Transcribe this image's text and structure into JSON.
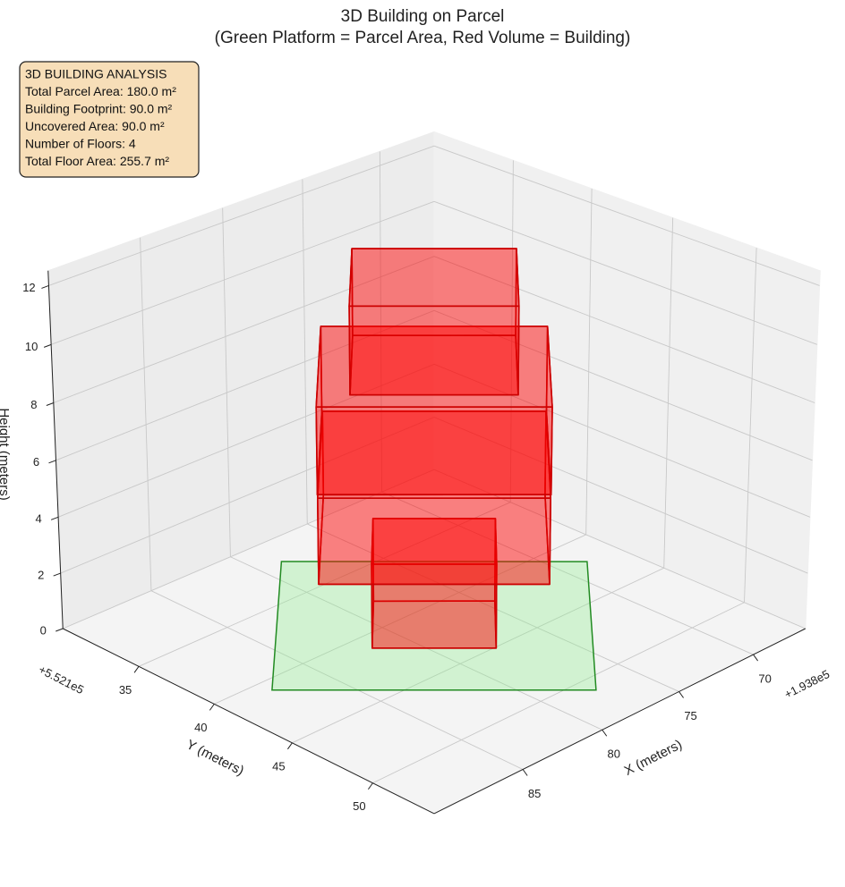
{
  "chart_data": {
    "type": "3d-boxes",
    "title": "3D Building on Parcel",
    "subtitle": "(Green Platform = Parcel Area, Red Volume = Building)",
    "xlabel": "X (meters)",
    "ylabel": "Y (meters)",
    "zlabel": "Height (meters)",
    "x_offset": "+1.938e5",
    "y_offset": "+5.521e5",
    "xlim": [
      66.4,
      90.4
    ],
    "ylim": [
      29.8,
      53.7
    ],
    "zlim": [
      0,
      12.5
    ],
    "xticks": [
      70,
      75,
      80,
      85
    ],
    "yticks": [
      35,
      40,
      45,
      50
    ],
    "zticks": [
      0,
      2,
      4,
      6,
      8,
      10,
      12
    ],
    "grid": true,
    "annotation": [
      "3D BUILDING ANALYSIS",
      "Total Parcel Area: 180.0 m²",
      "Building Footprint: 90.0 m²",
      "Uncovered Area: 90.0 m²",
      "Number of Floors: 4",
      "Total Floor Area: 255.7 m²"
    ],
    "parcel": {
      "color": "#90ee90",
      "edgecolor": "#228b22",
      "x": [
        87.7,
        77.5,
        68.46,
        78.64
      ],
      "y": [
        40.85,
        51.0,
        42.0,
        31.86
      ],
      "z": 0
    },
    "buildings": [
      {
        "color": "#ff0000",
        "edgecolor": "#cc0000",
        "x": [
          81.74,
          77.77,
          74.46,
          78.43
        ],
        "y": [
          41.12,
          45.08,
          41.78,
          37.83
        ],
        "z": [
          0,
          3
        ]
      },
      {
        "color": "#ff0000",
        "edgecolor": "#cc0000",
        "x": [
          84.8,
          77.53,
          71.03,
          78.3
        ],
        "y": [
          40.89,
          48.12,
          41.65,
          34.42
        ],
        "z": [
          3,
          6
        ]
      },
      {
        "color": "#ff0000",
        "edgecolor": "#cc0000",
        "x": [
          84.56,
          77.26,
          71.02,
          78.32
        ],
        "y": [
          40.62,
          47.89,
          41.67,
          34.4
        ],
        "z": [
          6,
          9
        ]
      },
      {
        "color": "#ff0000",
        "edgecolor": "#cc0000",
        "x": [
          82.63,
          77.4,
          72.78,
          78.01
        ],
        "y": [
          40.75,
          45.96,
          41.36,
          36.16
        ],
        "z": [
          9,
          12
        ]
      }
    ]
  }
}
